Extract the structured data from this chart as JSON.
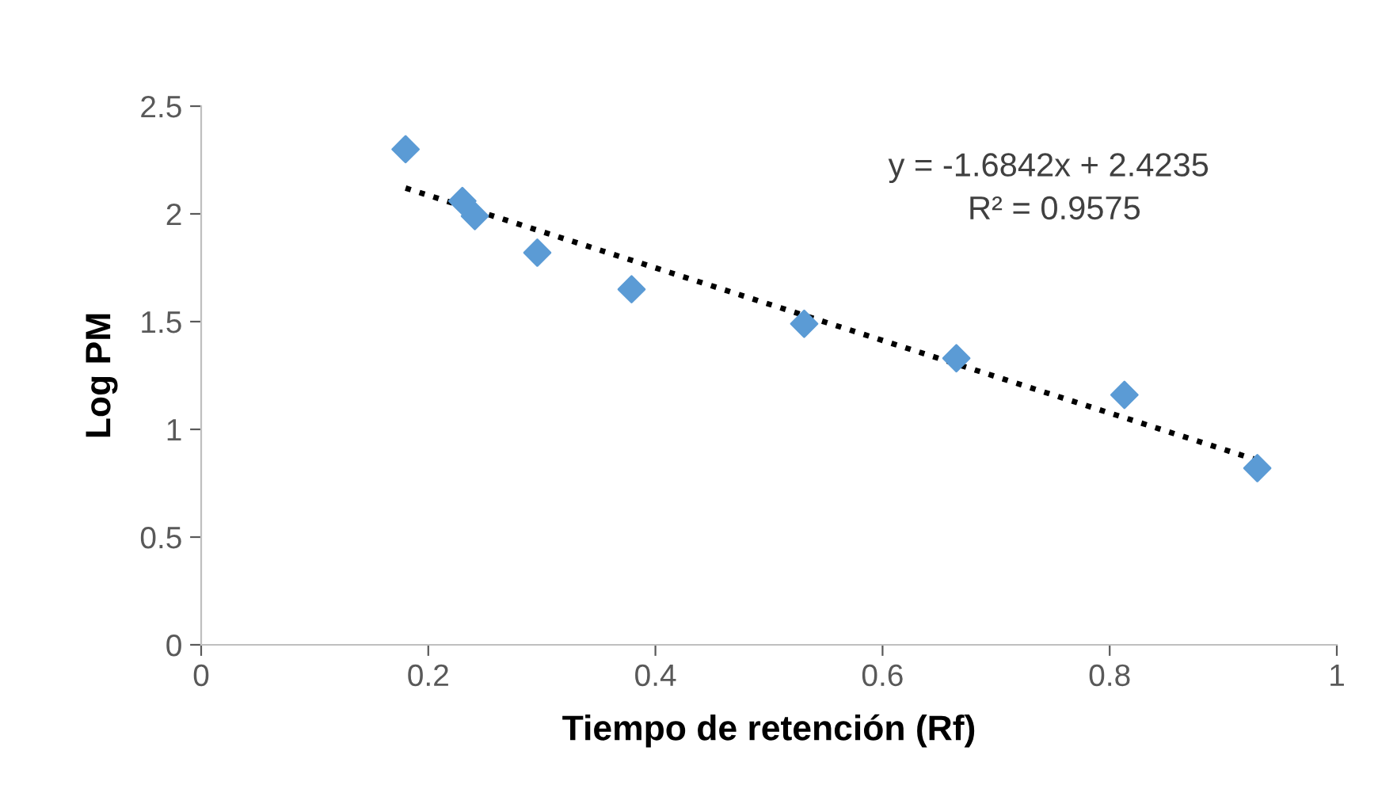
{
  "chart_data": {
    "type": "scatter",
    "xlabel": "Tiempo de retención (Rf)",
    "ylabel": "Log PM",
    "annotations": [
      "y = -1.6842x + 2.4235",
      "R² = 0.9575"
    ],
    "xlim": [
      0,
      1
    ],
    "xticks": [
      0,
      0.2,
      0.4,
      0.6,
      0.8,
      1
    ],
    "ylim": [
      0,
      2.5
    ],
    "yticks": [
      0,
      0.5,
      1,
      1.5,
      2,
      2.5
    ],
    "grid": false,
    "legend": false,
    "series": [
      {
        "color": "#5b9bd5",
        "marker": "diamond",
        "x": [
          0.18,
          0.23,
          0.241,
          0.296,
          0.379,
          0.531,
          0.665,
          0.813,
          0.93
        ],
        "values": [
          2.3,
          2.06,
          1.99,
          1.82,
          1.65,
          1.49,
          1.33,
          1.16,
          0.82
        ]
      },
      {
        "type": "line",
        "color": "#000000",
        "line_style": "dotted",
        "x": [
          0.18,
          0.93
        ],
        "values": [
          2.12,
          0.857
        ]
      }
    ]
  }
}
